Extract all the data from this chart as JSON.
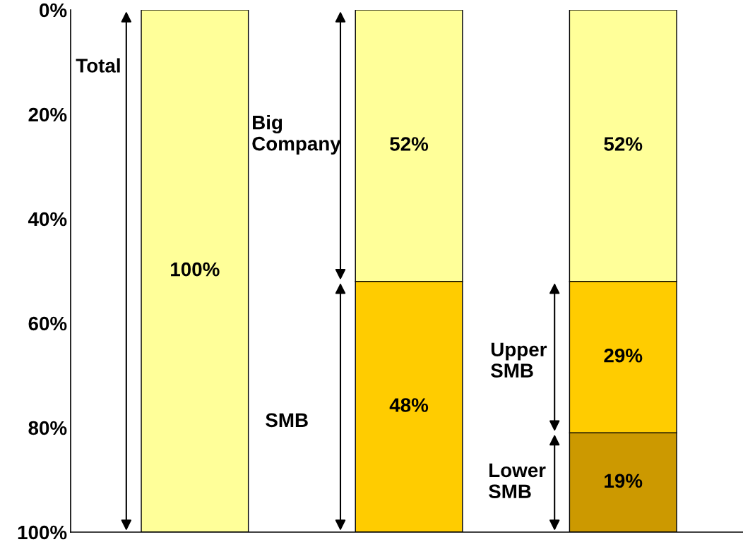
{
  "chart_data": {
    "type": "bar",
    "stacked": true,
    "categories": [
      null,
      null,
      null
    ],
    "ylim": [
      100,
      0
    ],
    "yticks": [
      {
        "value": 0,
        "label": "0%"
      },
      {
        "value": 20,
        "label": "20%"
      },
      {
        "value": 40,
        "label": "40%"
      },
      {
        "value": 60,
        "label": "60%"
      },
      {
        "value": 80,
        "label": "80%"
      },
      {
        "value": 100,
        "label": "100%"
      }
    ],
    "series": [
      {
        "color": "#ffff99",
        "values": [
          100,
          52,
          52
        ],
        "value_labels": [
          "100%",
          "52%",
          "52%"
        ]
      },
      {
        "color": "#ffcc00",
        "values": [
          null,
          48,
          29
        ],
        "value_labels": [
          null,
          "48%",
          "29%"
        ]
      },
      {
        "color": "#cc9900",
        "values": [
          null,
          null,
          19
        ],
        "value_labels": [
          null,
          null,
          "19%"
        ]
      }
    ],
    "annotations": [
      "Total",
      "Big\nCompany",
      "SMB",
      "Upper\nSMB",
      "Lower\nSMB"
    ],
    "grid": false,
    "tick_labels": "y"
  }
}
